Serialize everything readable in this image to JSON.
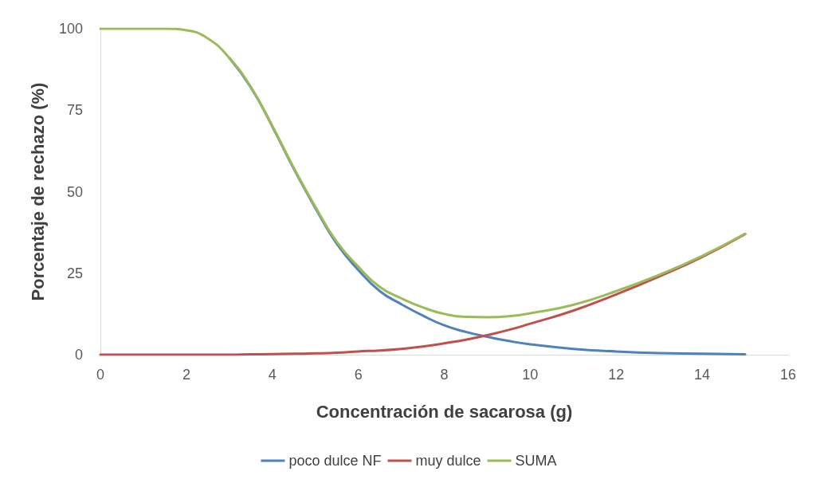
{
  "chart_data": {
    "type": "line",
    "xlabel": "Concentración de sacarosa (g)",
    "ylabel": "Porcentaje de rechazo (%)",
    "x": [
      0,
      0.5,
      1,
      1.5,
      2,
      2.5,
      3,
      3.5,
      4,
      4.5,
      5,
      5.5,
      6,
      6.5,
      7,
      7.5,
      8,
      8.5,
      9,
      9.5,
      10,
      11,
      12,
      13,
      14,
      15
    ],
    "series": [
      {
        "name": "poco dulce NF",
        "color": "#4f81bd",
        "values": [
          null,
          null,
          null,
          null,
          null,
          null,
          91,
          82,
          70,
          57,
          45,
          34,
          26,
          19.5,
          15.5,
          12,
          9,
          7,
          5.5,
          4.2,
          3.2,
          1.8,
          1,
          0.5,
          0.3,
          0.1
        ]
      },
      {
        "name": "muy dulce",
        "color": "#c0504d",
        "values": [
          0,
          0,
          0,
          0,
          0,
          0,
          0,
          0.1,
          0.2,
          0.3,
          0.4,
          0.6,
          1,
          1.3,
          1.8,
          2.5,
          3.5,
          4.6,
          6,
          7.6,
          9.5,
          13.5,
          18.5,
          24,
          30,
          37
        ]
      },
      {
        "name": "SUMA",
        "color": "#9bbb59",
        "values": [
          100,
          100,
          100,
          100,
          99.5,
          97,
          91,
          82.1,
          70.2,
          57.3,
          45.4,
          34.6,
          27,
          20.8,
          17.3,
          14.5,
          12.5,
          11.6,
          11.5,
          11.8,
          12.7,
          15.3,
          19.5,
          24.5,
          30.3,
          37.1
        ]
      }
    ],
    "xlim": [
      0,
      16
    ],
    "xticks": [
      0,
      2,
      4,
      6,
      8,
      10,
      12,
      14,
      16
    ],
    "ylim": [
      0,
      100
    ],
    "yticks": [
      0,
      25,
      50,
      75,
      100
    ],
    "grid": false,
    "legend": "bottom",
    "marker": "none",
    "line_style": "solid"
  }
}
